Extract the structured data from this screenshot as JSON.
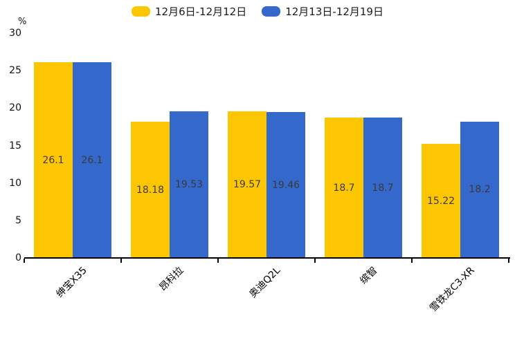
{
  "chart_data": {
    "type": "bar",
    "title": "",
    "unit_label": "%",
    "categories": [
      "绅宝X35",
      "昂科拉",
      "奥迪Q2L",
      "缤智",
      "雪铁龙C3-XR"
    ],
    "series": [
      {
        "name": "12月6日-12月12日",
        "color": "#FDC602",
        "values": [
          26.1,
          18.18,
          19.57,
          18.7,
          15.22
        ]
      },
      {
        "name": "12月13日-12月19日",
        "color": "#3468CB",
        "values": [
          26.1,
          19.53,
          19.46,
          18.7,
          18.2
        ]
      }
    ],
    "ylim": [
      0,
      30
    ],
    "yticks": [
      0,
      5,
      10,
      15,
      20,
      25,
      30
    ],
    "grid": false,
    "legend_position": "top",
    "value_labels": "inside-center",
    "xlabel_rotation_deg": 45
  }
}
